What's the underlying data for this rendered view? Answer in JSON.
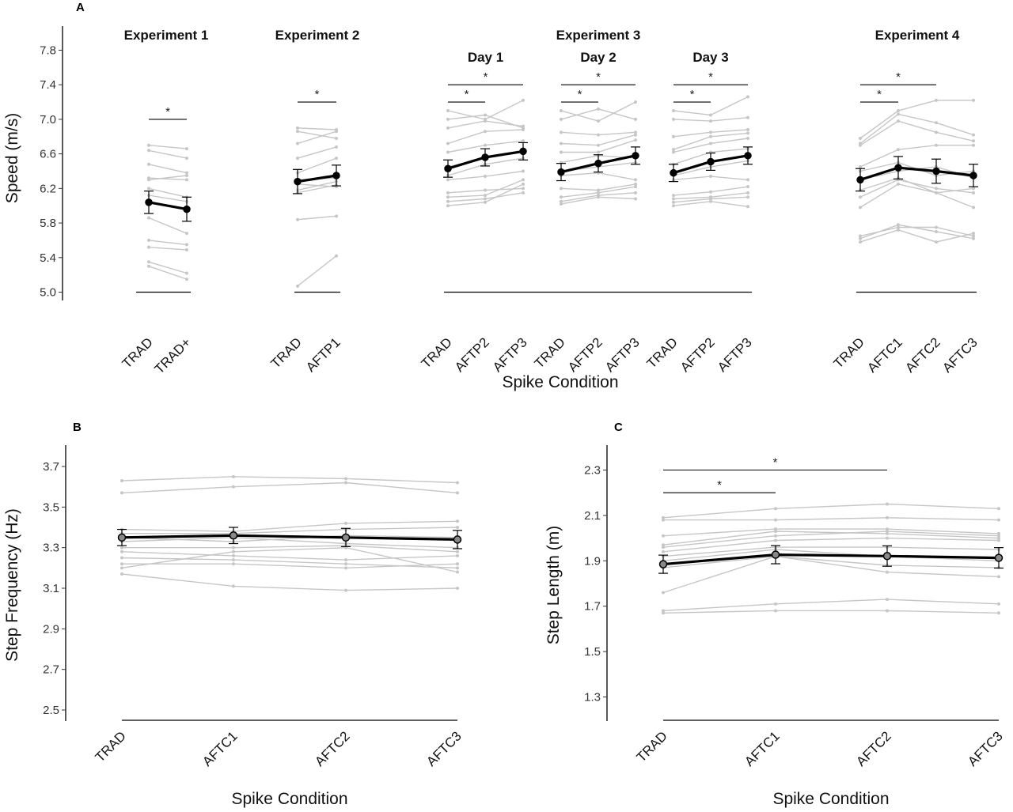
{
  "chart_data": [
    {
      "panel": "A",
      "type": "line",
      "ylabel": "Speed (m/s)",
      "xlabel": "Spike Condition",
      "yticks": [
        5.0,
        5.4,
        5.8,
        6.2,
        6.6,
        7.0,
        7.4,
        7.8
      ],
      "ylim": [
        4.9,
        8.1
      ],
      "groups": [
        {
          "title": "Experiment 1",
          "subtitle": "",
          "categories": [
            "TRAD",
            "TRAD+"
          ],
          "mean": [
            6.04,
            5.96
          ],
          "err": [
            0.13,
            0.14
          ],
          "subjects": [
            [
              6.7,
              6.66
            ],
            [
              6.64,
              6.55
            ],
            [
              6.48,
              6.38
            ],
            [
              6.32,
              6.3
            ],
            [
              6.3,
              6.35
            ],
            [
              6.2,
              6.1
            ],
            [
              6.12,
              6.05
            ],
            [
              5.86,
              5.68
            ],
            [
              5.6,
              5.55
            ],
            [
              5.52,
              5.49
            ],
            [
              5.35,
              5.22
            ],
            [
              5.3,
              5.15
            ]
          ],
          "sig": [
            {
              "from": 0,
              "to": 1,
              "label": "*",
              "y": 7.0
            }
          ]
        },
        {
          "title": "Experiment 2",
          "subtitle": "",
          "categories": [
            "TRAD",
            "AFTP1"
          ],
          "mean": [
            6.28,
            6.35
          ],
          "err": [
            0.14,
            0.12
          ],
          "subjects": [
            [
              6.9,
              6.88
            ],
            [
              6.86,
              6.78
            ],
            [
              6.72,
              6.86
            ],
            [
              6.55,
              6.68
            ],
            [
              6.38,
              6.55
            ],
            [
              6.3,
              6.32
            ],
            [
              6.25,
              6.22
            ],
            [
              6.18,
              6.28
            ],
            [
              6.15,
              6.24
            ],
            [
              5.84,
              5.88
            ],
            [
              5.07,
              5.42
            ]
          ],
          "sig": [
            {
              "from": 0,
              "to": 1,
              "label": "*",
              "y": 7.2
            }
          ]
        },
        {
          "title": "Experiment 3",
          "subtitle": "Day 1",
          "categories": [
            "TRAD",
            "AFTP2",
            "AFTP3"
          ],
          "mean": [
            6.43,
            6.56,
            6.63
          ],
          "err": [
            0.1,
            0.1,
            0.1
          ],
          "subjects": [
            [
              7.1,
              7.0,
              7.22
            ],
            [
              7.0,
              7.05,
              6.9
            ],
            [
              6.9,
              6.98,
              6.92
            ],
            [
              6.72,
              6.86,
              6.88
            ],
            [
              6.62,
              6.7,
              6.75
            ],
            [
              6.45,
              6.55,
              6.62
            ],
            [
              6.35,
              6.48,
              6.55
            ],
            [
              6.3,
              6.34,
              6.4
            ],
            [
              6.15,
              6.18,
              6.2
            ],
            [
              6.1,
              6.12,
              6.3
            ],
            [
              6.05,
              6.08,
              6.15
            ],
            [
              6.0,
              6.04,
              6.25
            ]
          ],
          "sig": [
            {
              "from": 0,
              "to": 1,
              "label": "*",
              "y": 7.2
            },
            {
              "from": 0,
              "to": 2,
              "label": "*",
              "y": 7.4
            }
          ]
        },
        {
          "title": "",
          "subtitle": "Day 2",
          "categories": [
            "TRAD",
            "AFTP2",
            "AFTP3"
          ],
          "mean": [
            6.39,
            6.49,
            6.58
          ],
          "err": [
            0.1,
            0.1,
            0.1
          ],
          "subjects": [
            [
              7.1,
              6.98,
              7.2
            ],
            [
              7.0,
              7.12,
              7.0
            ],
            [
              6.85,
              6.82,
              6.85
            ],
            [
              6.72,
              6.7,
              6.82
            ],
            [
              6.62,
              6.62,
              6.76
            ],
            [
              6.5,
              6.58,
              6.55
            ],
            [
              6.4,
              6.45,
              6.5
            ],
            [
              6.35,
              6.38,
              6.3
            ],
            [
              6.2,
              6.18,
              6.25
            ],
            [
              6.1,
              6.15,
              6.22
            ],
            [
              6.05,
              6.12,
              6.15
            ],
            [
              6.02,
              6.1,
              6.08
            ]
          ],
          "sig": [
            {
              "from": 0,
              "to": 1,
              "label": "*",
              "y": 7.2
            },
            {
              "from": 0,
              "to": 2,
              "label": "*",
              "y": 7.4
            }
          ]
        },
        {
          "title": "",
          "subtitle": "Day 3",
          "categories": [
            "TRAD",
            "AFTP2",
            "AFTP3"
          ],
          "mean": [
            6.38,
            6.51,
            6.58
          ],
          "err": [
            0.1,
            0.1,
            0.1
          ],
          "subjects": [
            [
              7.1,
              7.05,
              7.26
            ],
            [
              7.0,
              6.98,
              7.02
            ],
            [
              6.8,
              6.85,
              6.88
            ],
            [
              6.65,
              6.8,
              6.84
            ],
            [
              6.62,
              6.72,
              6.78
            ],
            [
              6.48,
              6.62,
              6.66
            ],
            [
              6.35,
              6.45,
              6.52
            ],
            [
              6.3,
              6.34,
              6.3
            ],
            [
              6.12,
              6.16,
              6.22
            ],
            [
              6.08,
              6.1,
              6.15
            ],
            [
              6.04,
              6.08,
              6.1
            ],
            [
              6.0,
              6.05,
              5.99
            ]
          ],
          "sig": [
            {
              "from": 0,
              "to": 1,
              "label": "*",
              "y": 7.2
            },
            {
              "from": 0,
              "to": 2,
              "label": "*",
              "y": 7.4
            }
          ]
        },
        {
          "title": "Experiment 4",
          "subtitle": "",
          "categories": [
            "TRAD",
            "AFTC1",
            "AFTC2",
            "AFTC3"
          ],
          "mean": [
            6.3,
            6.44,
            6.4,
            6.35
          ],
          "err": [
            0.13,
            0.13,
            0.14,
            0.13
          ],
          "subjects": [
            [
              6.78,
              7.1,
              7.22,
              7.22
            ],
            [
              6.72,
              7.06,
              6.96,
              6.82
            ],
            [
              6.7,
              6.98,
              6.85,
              6.75
            ],
            [
              6.45,
              6.65,
              6.7,
              6.7
            ],
            [
              6.4,
              6.5,
              6.35,
              6.4
            ],
            [
              6.3,
              6.4,
              6.45,
              6.32
            ],
            [
              6.18,
              6.32,
              6.15,
              6.2
            ],
            [
              6.1,
              6.3,
              6.2,
              6.15
            ],
            [
              5.98,
              6.25,
              6.15,
              5.98
            ],
            [
              5.65,
              5.75,
              5.75,
              5.65
            ],
            [
              5.62,
              5.78,
              5.7,
              5.62
            ],
            [
              5.58,
              5.72,
              5.58,
              5.68
            ]
          ],
          "sig": [
            {
              "from": 0,
              "to": 1,
              "label": "*",
              "y": 7.2
            },
            {
              "from": 0,
              "to": 2,
              "label": "*",
              "y": 7.4
            }
          ]
        }
      ]
    },
    {
      "panel": "B",
      "type": "line",
      "ylabel": "Step Frequency (Hz)",
      "xlabel": "Spike Condition",
      "yticks": [
        2.5,
        2.7,
        2.9,
        3.1,
        3.3,
        3.5,
        3.7
      ],
      "ylim": [
        2.45,
        3.8
      ],
      "groups": [
        {
          "title": "",
          "subtitle": "",
          "categories": [
            "TRAD",
            "AFTC1",
            "AFTC2",
            "AFTC3"
          ],
          "mean": [
            3.35,
            3.36,
            3.35,
            3.34
          ],
          "err": [
            0.04,
            0.04,
            0.045,
            0.045
          ],
          "subjects": [
            [
              3.63,
              3.65,
              3.64,
              3.62
            ],
            [
              3.57,
              3.6,
              3.62,
              3.57
            ],
            [
              3.39,
              3.38,
              3.42,
              3.43
            ],
            [
              3.37,
              3.37,
              3.39,
              3.4
            ],
            [
              3.35,
              3.33,
              3.36,
              3.35
            ],
            [
              3.33,
              3.35,
              3.32,
              3.3
            ],
            [
              3.3,
              3.3,
              3.31,
              3.28
            ],
            [
              3.28,
              3.26,
              3.24,
              3.26
            ],
            [
              3.25,
              3.24,
              3.22,
              3.2
            ],
            [
              3.22,
              3.22,
              3.2,
              3.22
            ],
            [
              3.2,
              3.28,
              3.3,
              3.18
            ],
            [
              3.17,
              3.11,
              3.09,
              3.1
            ]
          ],
          "sig": []
        }
      ]
    },
    {
      "panel": "C",
      "type": "line",
      "ylabel": "Step Length (m)",
      "xlabel": "Spike Condition",
      "yticks": [
        1.3,
        1.5,
        1.7,
        1.9,
        2.1,
        2.3
      ],
      "ylim": [
        1.2,
        2.4
      ],
      "groups": [
        {
          "title": "",
          "subtitle": "",
          "categories": [
            "TRAD",
            "AFTC1",
            "AFTC2",
            "AFTC3"
          ],
          "mean": [
            1.885,
            1.927,
            1.921,
            1.913
          ],
          "err": [
            0.04,
            0.04,
            0.045,
            0.045
          ],
          "subjects": [
            [
              2.09,
              2.13,
              2.15,
              2.13
            ],
            [
              2.08,
              2.08,
              2.09,
              2.08
            ],
            [
              2.01,
              2.04,
              2.04,
              2.02
            ],
            [
              1.97,
              2.03,
              2.02,
              2.0
            ],
            [
              1.96,
              2.01,
              2.03,
              2.01
            ],
            [
              1.94,
              1.99,
              2.0,
              1.99
            ],
            [
              1.92,
              1.96,
              1.96,
              1.95
            ],
            [
              1.9,
              1.95,
              1.92,
              1.9
            ],
            [
              1.87,
              1.92,
              1.85,
              1.83
            ],
            [
              1.76,
              1.92,
              1.88,
              1.87
            ],
            [
              1.68,
              1.71,
              1.73,
              1.71
            ],
            [
              1.67,
              1.68,
              1.68,
              1.67
            ]
          ],
          "sig": [
            {
              "from": 0,
              "to": 1,
              "label": "*",
              "y": 2.2
            },
            {
              "from": 0,
              "to": 2,
              "label": "*",
              "y": 2.3
            }
          ]
        }
      ]
    }
  ]
}
